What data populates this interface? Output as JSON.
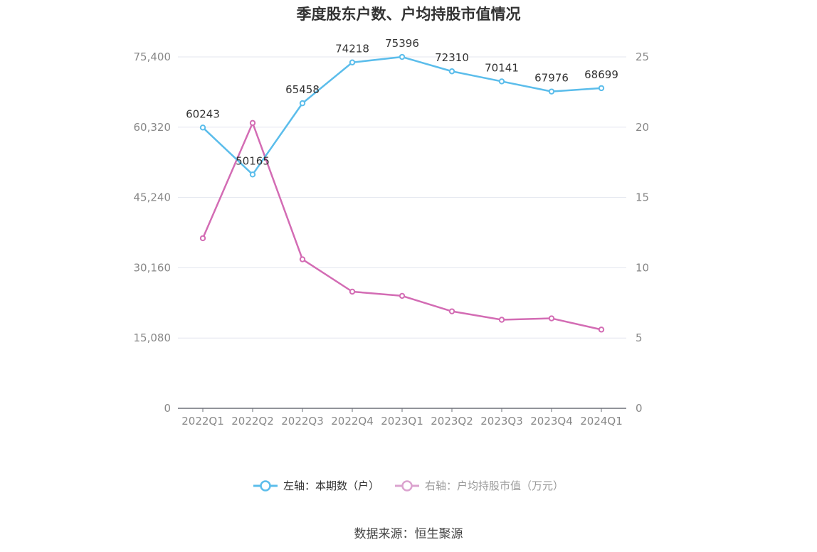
{
  "title": "季度股东户数、户均持股市值情况",
  "source": "数据来源：恒生聚源",
  "legend": [
    {
      "label": "左轴：本期数（户）",
      "color": "#5bbdeb"
    },
    {
      "label": "右轴：户均持股市值（万元）",
      "color": "#dba3cf"
    }
  ],
  "chart_data": {
    "type": "line",
    "categories": [
      "2022Q1",
      "2022Q2",
      "2022Q3",
      "2022Q4",
      "2023Q1",
      "2023Q2",
      "2023Q3",
      "2023Q4",
      "2024Q1"
    ],
    "y_left": {
      "ticks": [
        "0",
        "15,080",
        "30,160",
        "45,240",
        "60,320",
        "75,400"
      ],
      "range": [
        0,
        75400
      ]
    },
    "y_right": {
      "ticks": [
        "0",
        "5",
        "10",
        "15",
        "20",
        "25"
      ],
      "range": [
        0,
        25
      ]
    },
    "grid": true,
    "legend_position": "bottom",
    "series": [
      {
        "name": "左轴：本期数（户）",
        "axis": "left",
        "color": "#5bbdeb",
        "values": [
          60243,
          50165,
          65458,
          74218,
          75396,
          72310,
          70141,
          67976,
          68699
        ],
        "labels": [
          "60243",
          "50165",
          "65458",
          "74218",
          "75396",
          "72310",
          "70141",
          "67976",
          "68699"
        ]
      },
      {
        "name": "右轴：户均持股市值（万元）",
        "axis": "right",
        "color": "#d36cb4",
        "values": [
          12.1,
          20.3,
          10.6,
          8.3,
          8.0,
          6.9,
          6.3,
          6.4,
          5.6
        ]
      }
    ]
  }
}
